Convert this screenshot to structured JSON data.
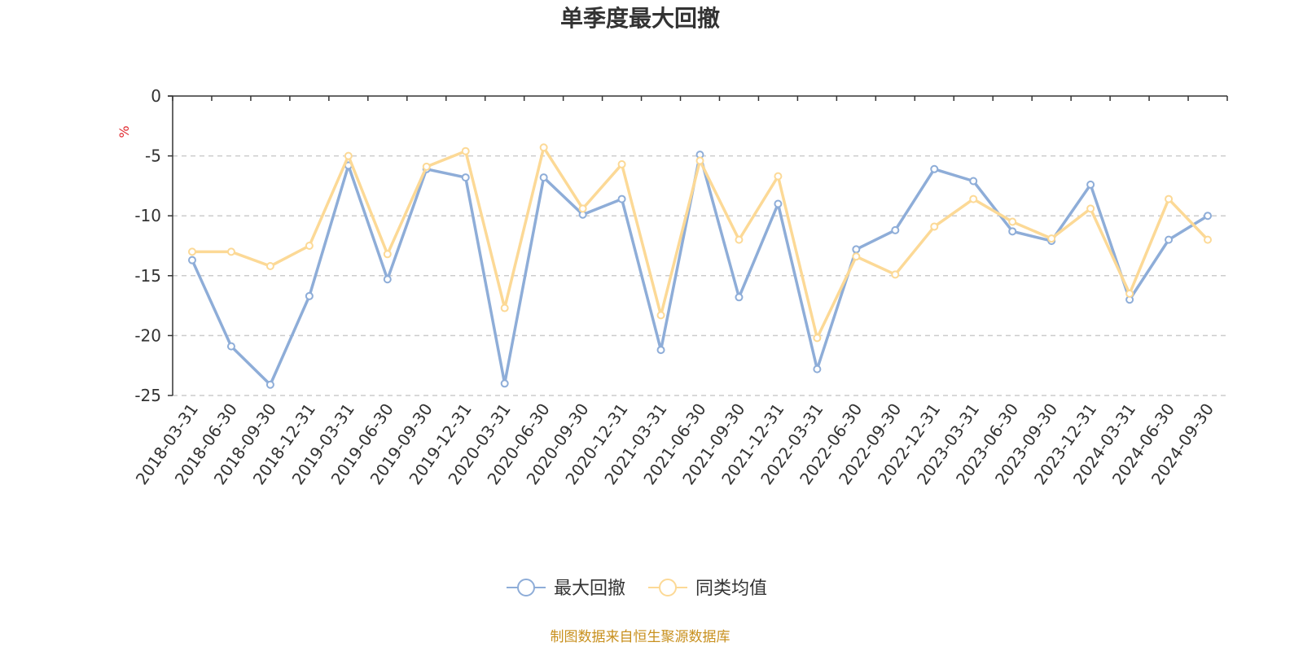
{
  "chart_data": {
    "type": "line",
    "title": "单季度最大回撤",
    "ylabel": "%",
    "ylim": [
      -25,
      0
    ],
    "yticks": [
      0,
      -5,
      -10,
      -15,
      -20,
      -25
    ],
    "grid": true,
    "legend_position": "bottom",
    "categories": [
      "2018-03-31",
      "2018-06-30",
      "2018-09-30",
      "2018-12-31",
      "2019-03-31",
      "2019-06-30",
      "2019-09-30",
      "2019-12-31",
      "2020-03-31",
      "2020-06-30",
      "2020-09-30",
      "2020-12-31",
      "2021-03-31",
      "2021-06-30",
      "2021-09-30",
      "2021-12-31",
      "2022-03-31",
      "2022-06-30",
      "2022-09-30",
      "2022-12-31",
      "2023-03-31",
      "2023-06-30",
      "2023-09-30",
      "2023-12-31",
      "2024-03-31",
      "2024-06-30",
      "2024-09-30"
    ],
    "series": [
      {
        "name": "最大回撤",
        "color": "#8eadd8",
        "values": [
          -13.7,
          -20.9,
          -24.1,
          -16.7,
          -5.8,
          -15.3,
          -6.1,
          -6.8,
          -24.0,
          -6.8,
          -9.9,
          -8.6,
          -21.2,
          -4.9,
          -16.8,
          -9.0,
          -22.8,
          -12.8,
          -11.2,
          -6.1,
          -7.1,
          -11.3,
          -12.1,
          -7.4,
          -17.0,
          -12.0,
          -10.0
        ]
      },
      {
        "name": "同类均值",
        "color": "#fcd996",
        "values": [
          -13.0,
          -13.0,
          -14.2,
          -12.5,
          -5.0,
          -13.2,
          -5.9,
          -4.6,
          -17.7,
          -4.3,
          -9.4,
          -5.7,
          -18.3,
          -5.4,
          -12.0,
          -6.7,
          -20.2,
          -13.4,
          -14.9,
          -10.9,
          -8.6,
          -10.5,
          -11.9,
          -9.4,
          -16.5,
          -8.6,
          -12.0
        ]
      }
    ],
    "source": "制图数据来自恒生聚源数据库"
  }
}
